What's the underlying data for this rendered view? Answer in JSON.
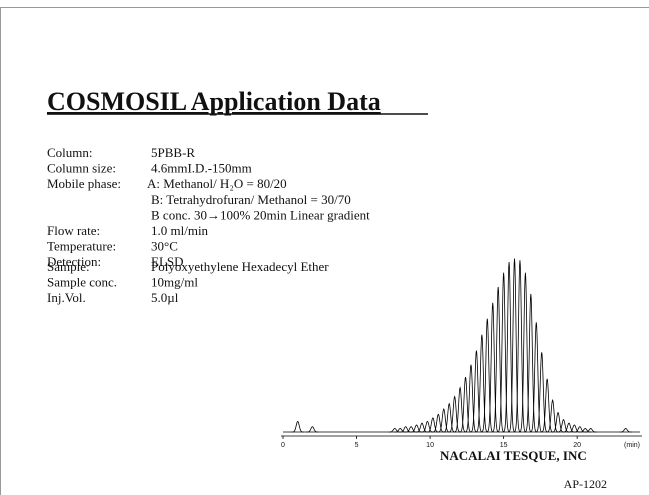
{
  "title": "COSMOSIL Application Data",
  "conditions": [
    {
      "label": "Column:",
      "lines": [
        "5PBB-R"
      ]
    },
    {
      "label": "Column size:",
      "lines": [
        "4.6mmI.D.-150mm"
      ]
    },
    {
      "label": "Mobile phase:",
      "lines": [
        "A: Methanol/ H₂O = 80/20",
        "B: Tetrahydrofuran/ Methanol = 30/70",
        "B conc. 30→100% 20min Linear gradient"
      ]
    },
    {
      "label": "Flow rate:",
      "lines": [
        "1.0 ml/min"
      ]
    },
    {
      "label": "Temperature:",
      "lines": [
        "30°C"
      ]
    },
    {
      "label": "Detection:",
      "lines": [
        "ELSD"
      ]
    }
  ],
  "sample": [
    {
      "label": "Sample:",
      "lines": [
        "Polyoxyethylene Hexadecyl Ether"
      ]
    },
    {
      "label": "Sample conc.",
      "lines": [
        "10mg/ml"
      ]
    },
    {
      "label": "Inj.Vol.",
      "lines": [
        "5.0µl"
      ]
    }
  ],
  "chart_data": {
    "type": "line",
    "x_unit_label": "(min)",
    "xlim": [
      0,
      24
    ],
    "xticks": [
      0,
      5,
      10,
      15,
      20
    ],
    "ylim": [
      0,
      100
    ],
    "series": [
      {
        "color": "#000000",
        "x": [
          1.0,
          2.0,
          7.6,
          7.97,
          8.34,
          8.71,
          9.08,
          9.45,
          9.82,
          10.19,
          10.56,
          10.93,
          11.3,
          11.67,
          12.04,
          12.41,
          12.78,
          13.15,
          13.52,
          13.89,
          14.26,
          14.63,
          15.0,
          15.37,
          15.74,
          16.11,
          16.48,
          16.85,
          17.22,
          17.59,
          17.96,
          18.33,
          18.7,
          19.07,
          19.44,
          19.81,
          20.18,
          20.55,
          20.92,
          23.3
        ],
        "values": [
          6,
          3,
          2,
          2,
          3,
          3,
          4,
          5,
          6,
          8,
          10,
          13,
          16,
          20,
          25,
          31,
          38,
          46,
          55,
          64,
          73,
          82,
          90,
          96,
          98,
          97,
          90,
          78,
          62,
          45,
          30,
          18,
          11,
          7,
          5,
          4,
          3,
          2,
          2,
          2
        ]
      }
    ]
  },
  "footer": {
    "company": "NACALAI TESQUE, INC",
    "code": "AP-1202"
  }
}
